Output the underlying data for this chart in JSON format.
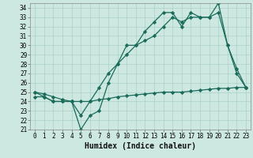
{
  "xlabel": "Humidex (Indice chaleur)",
  "background_color": "#cce8e0",
  "grid_color": "#aad0c8",
  "line_color": "#1a6b5a",
  "xlim": [
    -0.5,
    23.5
  ],
  "ylim": [
    21,
    34.5
  ],
  "yticks": [
    21,
    22,
    23,
    24,
    25,
    26,
    27,
    28,
    29,
    30,
    31,
    32,
    33,
    34
  ],
  "xticks": [
    0,
    1,
    2,
    3,
    4,
    5,
    6,
    7,
    8,
    9,
    10,
    11,
    12,
    13,
    14,
    15,
    16,
    17,
    18,
    19,
    20,
    21,
    22,
    23
  ],
  "series": [
    {
      "x": [
        0,
        1,
        2,
        3,
        4,
        5,
        6,
        7,
        8,
        9,
        10,
        11,
        12,
        13,
        14,
        15,
        16,
        17,
        18,
        19,
        20,
        21,
        22,
        23
      ],
      "y": [
        25,
        24.5,
        24,
        24,
        24,
        21,
        22.5,
        23,
        26,
        28,
        30,
        30,
        31.5,
        32.5,
        33.5,
        33.5,
        32,
        33.5,
        33,
        33,
        34.5,
        30,
        27.5,
        25.5
      ]
    },
    {
      "x": [
        0,
        1,
        2,
        3,
        4,
        5,
        6,
        7,
        8,
        9,
        10,
        11,
        12,
        13,
        14,
        15,
        16,
        17,
        18,
        19,
        20,
        21,
        22,
        23
      ],
      "y": [
        25,
        24.8,
        24.5,
        24.2,
        24,
        22.5,
        24,
        25.5,
        27,
        28,
        29,
        30,
        30.5,
        31,
        32,
        33,
        32.5,
        33,
        33,
        33,
        33.5,
        30,
        27,
        25.5
      ]
    },
    {
      "x": [
        0,
        1,
        2,
        3,
        4,
        5,
        6,
        7,
        8,
        9,
        10,
        11,
        12,
        13,
        14,
        15,
        16,
        17,
        18,
        19,
        20,
        21,
        22,
        23
      ],
      "y": [
        24.5,
        24.5,
        24,
        24,
        24,
        24,
        24,
        24.2,
        24.3,
        24.5,
        24.6,
        24.7,
        24.8,
        24.9,
        25,
        25,
        25,
        25.1,
        25.2,
        25.3,
        25.4,
        25.4,
        25.5,
        25.5
      ]
    }
  ],
  "tick_fontsize": 5.5,
  "xlabel_fontsize": 7,
  "marker": "D",
  "markersize": 2.2,
  "linewidth": 0.9
}
